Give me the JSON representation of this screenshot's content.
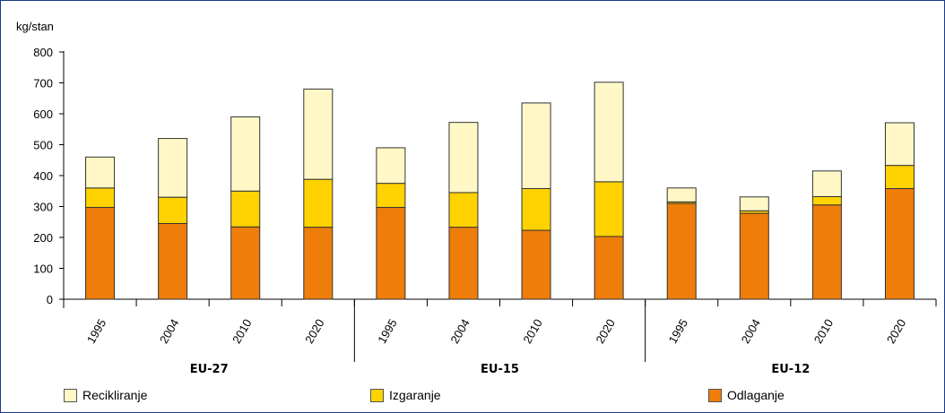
{
  "chart_data": {
    "type": "bar",
    "stacked": true,
    "ylabel": "kg/stan",
    "ylim": [
      0,
      800
    ],
    "yticks": [
      0,
      100,
      200,
      300,
      400,
      500,
      600,
      700,
      800
    ],
    "grid": false,
    "legend_position": "bottom",
    "groups": [
      {
        "name": "EU-27",
        "categories": [
          "1995",
          "2004",
          "2010",
          "2020"
        ]
      },
      {
        "name": "EU-15",
        "categories": [
          "1995",
          "2004",
          "2010",
          "2020"
        ]
      },
      {
        "name": "EU-12",
        "categories": [
          "1995",
          "2004",
          "2010",
          "2020"
        ]
      }
    ],
    "series": [
      {
        "name": "Odlaganje",
        "color": "#ee7d0a",
        "values": [
          297,
          245,
          234,
          233,
          297,
          233,
          223,
          203,
          310,
          278,
          305,
          358
        ]
      },
      {
        "name": "Izgaranje",
        "color": "#ffd200",
        "values": [
          63,
          85,
          116,
          155,
          78,
          112,
          135,
          177,
          5,
          8,
          27,
          75
        ]
      },
      {
        "name": "Recikliranje",
        "color": "#fff8c6",
        "values": [
          100,
          190,
          240,
          292,
          115,
          227,
          277,
          322,
          45,
          45,
          83,
          138
        ]
      }
    ]
  },
  "legend": {
    "recikliranje": "Recikliranje",
    "izgaranje": "Izgaranje",
    "odlaganje": "Odlaganje"
  }
}
